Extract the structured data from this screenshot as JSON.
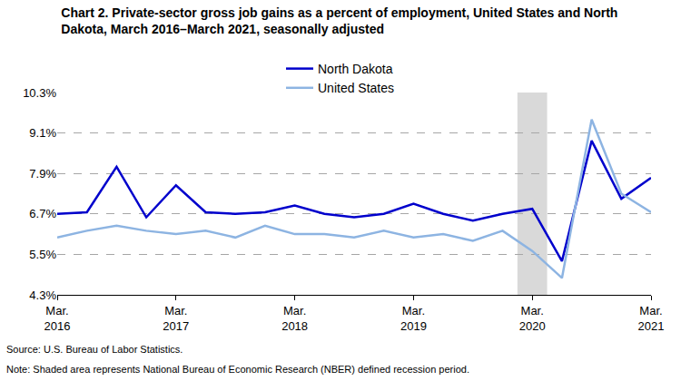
{
  "chart_data": {
    "type": "line",
    "title": "Chart 2. Private-sector gross job gains as a percent of employment, United States and North\nDakota, March 2016–March 2021, seasonally adjusted",
    "categories": [
      "Mar.\n2016",
      null,
      null,
      null,
      "Mar.\n2017",
      null,
      null,
      null,
      "Mar.\n2018",
      null,
      null,
      null,
      "Mar.\n2019",
      null,
      null,
      null,
      "Mar.\n2020",
      null,
      null,
      null,
      "Mar.\n2021"
    ],
    "series": [
      {
        "name": "North Dakota",
        "color": "#0000cc",
        "values": [
          6.7,
          6.75,
          8.1,
          6.6,
          7.55,
          6.75,
          6.7,
          6.75,
          6.95,
          6.7,
          6.6,
          6.7,
          7.0,
          6.7,
          6.5,
          6.7,
          6.85,
          5.3,
          8.87,
          7.15,
          7.77
        ]
      },
      {
        "name": "United States",
        "color": "#8db4e2",
        "values": [
          6.0,
          6.2,
          6.35,
          6.2,
          6.1,
          6.2,
          6.0,
          6.35,
          6.1,
          6.1,
          6.0,
          6.2,
          6.0,
          6.1,
          5.9,
          6.2,
          5.6,
          4.8,
          9.5,
          7.3,
          6.75
        ]
      }
    ],
    "ylim": [
      4.3,
      10.3
    ],
    "yticks": [
      {
        "value": 4.3,
        "label": "4.3%"
      },
      {
        "value": 5.5,
        "label": "5.5%"
      },
      {
        "value": 6.7,
        "label": "6.7%"
      },
      {
        "value": 7.9,
        "label": "7.9%"
      },
      {
        "value": 9.1,
        "label": "9.1%"
      },
      {
        "value": 10.3,
        "label": "10.3%"
      }
    ],
    "grid": true,
    "legend": "top",
    "recession": {
      "start": 15.5,
      "end": 16.5
    },
    "source": "Source: U.S. Bureau of Labor Statistics.",
    "note": "Note: Shaded area represents National Bureau of Economic Research (NBER) defined recession period."
  }
}
